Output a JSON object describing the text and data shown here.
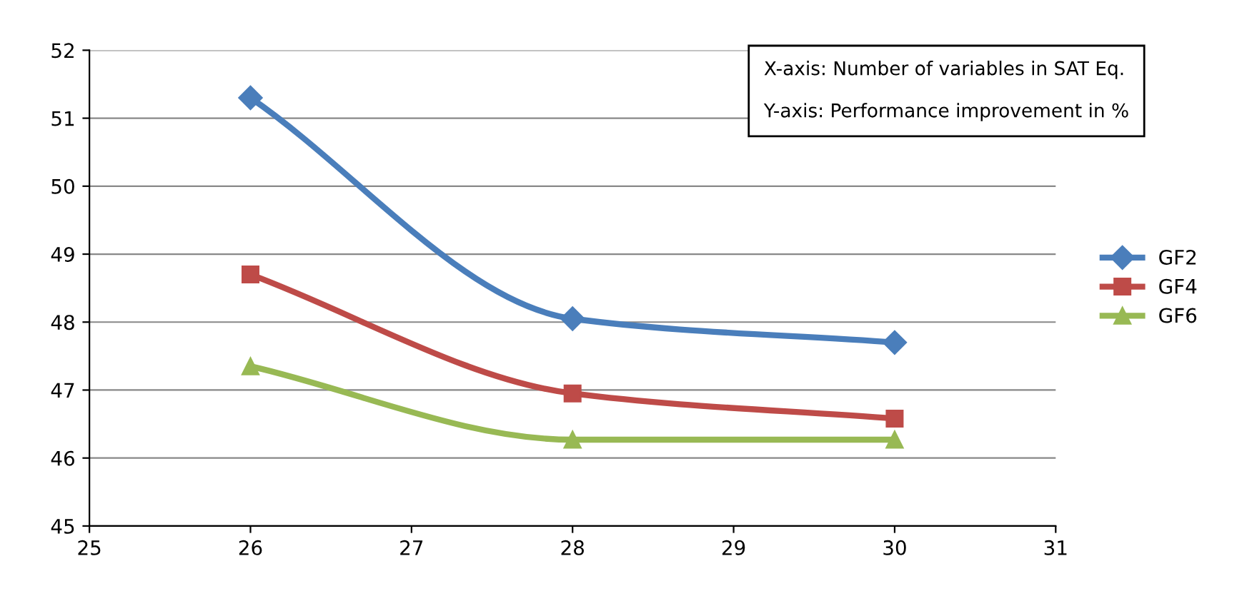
{
  "chart_data": {
    "type": "line",
    "x": [
      26,
      28,
      30
    ],
    "series": [
      {
        "name": "GF2",
        "color": "#4a7ebb",
        "marker": "diamond",
        "values": [
          51.3,
          48.05,
          47.7
        ]
      },
      {
        "name": "GF4",
        "color": "#be4b48",
        "marker": "square",
        "values": [
          48.7,
          46.95,
          46.58
        ]
      },
      {
        "name": "GF6",
        "color": "#98b954",
        "marker": "triangle",
        "values": [
          47.35,
          46.27,
          46.27
        ]
      }
    ],
    "xlim": [
      25,
      31
    ],
    "xticks": [
      25,
      26,
      27,
      28,
      29,
      30,
      31
    ],
    "ylim": [
      45,
      52
    ],
    "yticks": [
      45,
      46,
      47,
      48,
      49,
      50,
      51,
      52
    ],
    "grid": "y",
    "legend": "right",
    "line_style": "solid",
    "annotations": [
      "X-axis: Number of variables in SAT Eq.",
      "Y-axis: Performance improvement in %"
    ]
  }
}
